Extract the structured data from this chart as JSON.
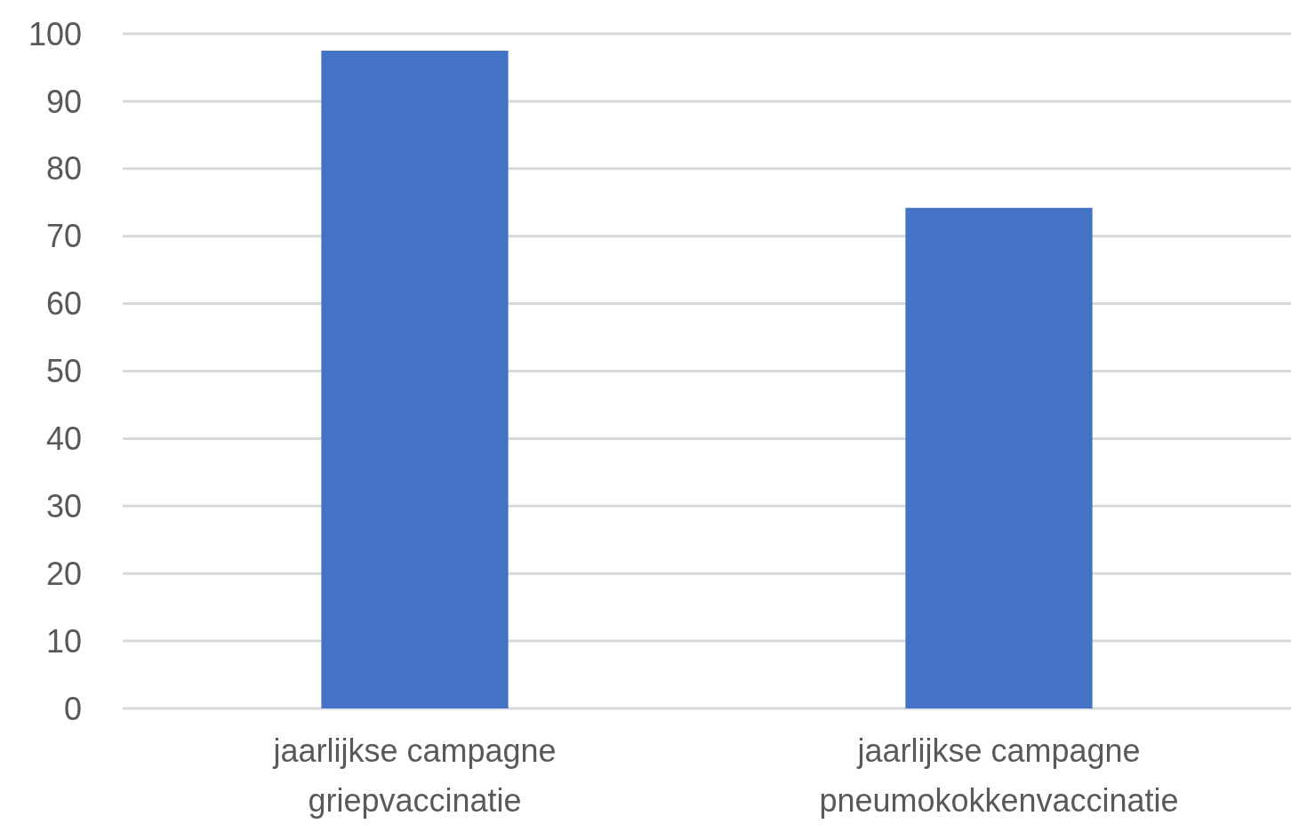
{
  "chart_data": {
    "type": "bar",
    "categories": [
      "jaarlijkse campagne griepvaccinatie",
      "jaarlijkse campagne pneumokokkenvaccinatie"
    ],
    "values": [
      97.5,
      74.2
    ],
    "color": "#4472c4",
    "ylim": [
      0,
      100
    ],
    "yticks": [
      0,
      10,
      20,
      30,
      40,
      50,
      60,
      70,
      80,
      90,
      100
    ],
    "grid": "y"
  }
}
